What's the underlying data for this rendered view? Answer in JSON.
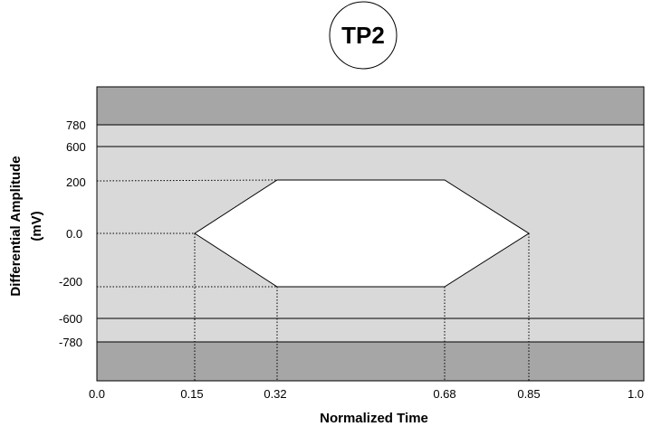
{
  "badge": {
    "label": "TP2"
  },
  "x_axis": {
    "title": "Normalized Time",
    "range": [
      0.0,
      1.0
    ],
    "ticks": [
      {
        "value": 0.0,
        "label": "0.0"
      },
      {
        "value": 0.15,
        "label": "0.15"
      },
      {
        "value": 0.32,
        "label": "0.32"
      },
      {
        "value": 0.68,
        "label": "0.68"
      },
      {
        "value": 0.85,
        "label": "0.85"
      },
      {
        "value": 1.0,
        "label": "1.0"
      }
    ]
  },
  "y_axis": {
    "title_line1": "Differential Amplitude",
    "title_line2": "(mV)",
    "ticks": [
      {
        "value": 780,
        "label": "780"
      },
      {
        "value": 600,
        "label": "600"
      },
      {
        "value": 200,
        "label": "200"
      },
      {
        "value": 0,
        "label": "0.0"
      },
      {
        "value": -200,
        "label": "-200"
      },
      {
        "value": -600,
        "label": "-600"
      },
      {
        "value": -780,
        "label": "-780"
      }
    ]
  },
  "eye_mask": {
    "vertices": [
      {
        "time": 0.15,
        "amplitude_mV": 0
      },
      {
        "time": 0.32,
        "amplitude_mV": 200
      },
      {
        "time": 0.68,
        "amplitude_mV": 200
      },
      {
        "time": 0.85,
        "amplitude_mV": 0
      },
      {
        "time": 0.68,
        "amplitude_mV": -200
      },
      {
        "time": 0.32,
        "amplitude_mV": -200
      }
    ]
  },
  "regions": {
    "forbidden_upper_above_mV": 780,
    "forbidden_lower_below_mV": -780,
    "limit_lines_mV": [
      780,
      600,
      -600,
      -780
    ]
  },
  "colors": {
    "dark_region": "#a6a6a6",
    "light_region": "#d9d9d9",
    "eye_fill": "#ffffff",
    "line": "#000000"
  }
}
